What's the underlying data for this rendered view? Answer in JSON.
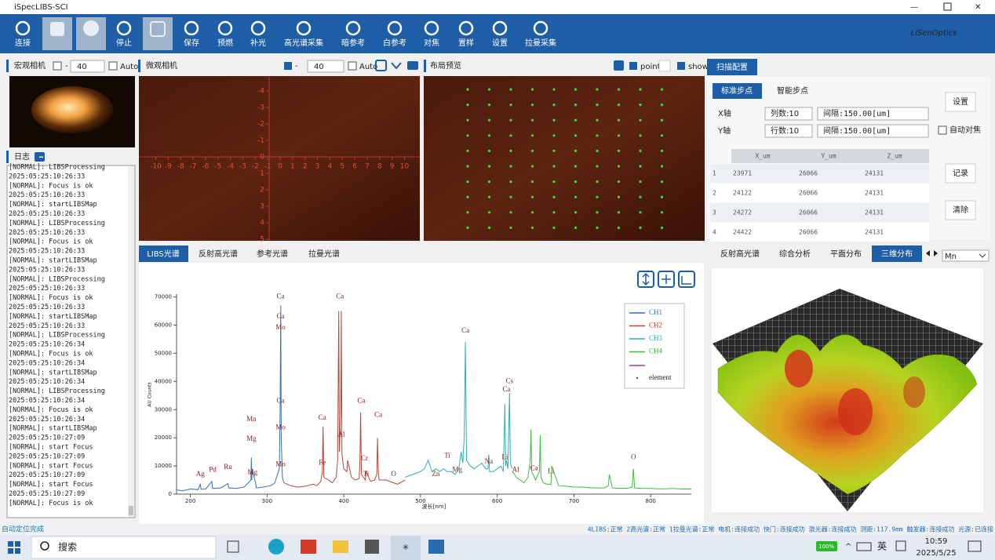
{
  "window": {
    "title": "iSpecLIBS-SCI"
  },
  "toolbar": [
    "连接",
    "停止",
    "保存",
    "预燃",
    "补光",
    "高光谱采集",
    "暗参考",
    "白参考",
    "对焦",
    "置样",
    "设置",
    "拉曼采集"
  ],
  "brand": "LiSenOptics",
  "macro_camera": {
    "title": "宏观相机",
    "exposure": "40",
    "auto": "Auto"
  },
  "micro_camera": {
    "title": "微观相机",
    "exposure": "40",
    "auto": "Auto",
    "xticks": [
      -10,
      -9,
      -8,
      -7,
      -6,
      -5,
      -4,
      -3,
      -2,
      -1,
      0,
      1,
      2,
      3,
      4,
      5,
      6,
      7,
      8,
      9,
      10
    ],
    "yticks": [
      -4,
      -3,
      -2,
      -1,
      0,
      1,
      2,
      3,
      4,
      5
    ]
  },
  "layout_preview": {
    "title": "布局预览",
    "point": "point",
    "show": "show"
  },
  "log": {
    "title": "日志",
    "lines": [
      "[NORMAL]:  LIBSProcessing",
      "2025:05:25:10:26:33",
      "[NORMAL]:  Focus is ok",
      "2025:05:25:10:26:33",
      "[NORMAL]:  startLIBSMap",
      "2025:05:25:10:26:33",
      "[NORMAL]:  LIBSProcessing",
      "2025:05:25:10:26:33",
      "[NORMAL]:  Focus is ok",
      "2025:05:25:10:26:33",
      "[NORMAL]:  startLIBSMap",
      "2025:05:25:10:26:33",
      "[NORMAL]:  LIBSProcessing",
      "2025:05:25:10:26:33",
      "[NORMAL]:  Focus is ok",
      "2025:05:25:10:26:33",
      "[NORMAL]:  startLIBSMap",
      "2025:05:25:10:26:33",
      "[NORMAL]:  LIBSProcessing",
      "2025:05:25:10:26:34",
      "[NORMAL]:  Focus is ok",
      "2025:05:25:10:26:34",
      "[NORMAL]:  startLIBSMap",
      "2025:05:25:10:26:34",
      "[NORMAL]:  LIBSProcessing",
      "2025:05:25:10:26:34",
      "[NORMAL]:  Focus is ok",
      "2025:05:25:10:26:34",
      "[NORMAL]:  startLIBSMap",
      "2025:05:25:10:27:09",
      "[NORMAL]:  start Focus",
      "2025:05:25:10:27:09",
      "[NORMAL]:  start Focus",
      "2025:05:25:10:27:09",
      "[NORMAL]:  start Focus",
      "2025:05:25:10:27:09",
      "[NORMAL]:  Focus is ok"
    ]
  },
  "scan_config": {
    "tab": "扫描配置",
    "subtabs": [
      "标准步点",
      "智能步点"
    ],
    "x_label": "X轴",
    "x_count": "列数:10",
    "x_step": "间隔:150.00[um]",
    "y_label": "Y轴",
    "y_count": "行数:10",
    "y_step": "间隔:150.00[um]",
    "set": "设置",
    "autofocus": "自动对焦",
    "record": "记录",
    "clear": "清除",
    "table": {
      "header": [
        "X_um",
        "Y_um",
        "Z_um"
      ],
      "rows": [
        [
          "1",
          "23971",
          "26066",
          "24131"
        ],
        [
          "2",
          "24122",
          "26066",
          "24131"
        ],
        [
          "3",
          "24272",
          "26066",
          "24131"
        ],
        [
          "4",
          "24422",
          "26066",
          "24131"
        ]
      ]
    }
  },
  "spectrum_tabs": [
    "LIBS光谱",
    "反射高光谱",
    "参考光谱",
    "拉曼光谱"
  ],
  "analysis_tabs": [
    "反射高光谱",
    "综合分析",
    "平面分布",
    "三维分布"
  ],
  "element_select": "Mn",
  "chart_data": {
    "type": "line",
    "xlabel": "波长[nm]",
    "ylabel": "AU Counts",
    "xlim": [
      182,
      853
    ],
    "ylim": [
      0,
      71000
    ],
    "xticks": [
      200,
      300,
      400,
      500,
      600,
      700,
      800
    ],
    "yticks": [
      0,
      10000,
      20000,
      30000,
      40000,
      50000,
      60000,
      70000
    ],
    "legend_extra": "element",
    "series": [
      {
        "name": "CH1",
        "color": "#3a6fb0",
        "x": [
          182,
          190,
          200,
          210,
          213,
          214,
          220,
          228,
          229,
          240,
          249,
          250,
          260,
          270,
          279,
          279.5,
          280,
          280.5,
          285,
          286,
          295,
          305,
          310,
          316,
          317,
          317.8,
          318.5,
          320,
          322
        ],
        "values": [
          1500,
          1200,
          1800,
          1600,
          3500,
          1700,
          1800,
          4500,
          2000,
          2200,
          3800,
          2200,
          2000,
          2500,
          5000,
          13000,
          5000,
          9000,
          4000,
          2200,
          2500,
          3000,
          4000,
          9000,
          30000,
          67000,
          20000,
          6000,
          4000
        ]
      },
      {
        "name": "CH2",
        "color": "#b5473a",
        "x": [
          322,
          330,
          340,
          350,
          360,
          365,
          370,
          372,
          373,
          374,
          380,
          385,
          390,
          392,
          393.4,
          394.2,
          395,
          396.2,
          396.8,
          397.6,
          400,
          404,
          405,
          410,
          415,
          420,
          421,
          422,
          423,
          428,
          429,
          435,
          440,
          443,
          444,
          445,
          446,
          455,
          465,
          470,
          480
        ],
        "values": [
          4000,
          3000,
          2500,
          2800,
          3500,
          3000,
          4500,
          8000,
          24000,
          6000,
          5000,
          4000,
          6000,
          12000,
          65000,
          15000,
          20000,
          30000,
          65000,
          14000,
          9000,
          8000,
          12000,
          6000,
          5000,
          5500,
          12000,
          29000,
          7000,
          5000,
          8000,
          4500,
          5000,
          7000,
          20000,
          8000,
          5000,
          5000,
          4000,
          3500,
          5000
        ]
      },
      {
        "name": "CH3",
        "color": "#2ab0b0",
        "x": [
          480,
          490,
          500,
          505,
          510,
          515,
          520,
          525,
          530,
          535,
          540,
          545,
          550,
          553,
          555,
          557,
          558.5,
          560,
          565,
          570,
          575,
          580,
          585,
          588,
          589,
          590,
          595,
          600,
          605,
          608,
          610,
          611,
          612,
          614,
          616,
          617,
          618,
          620
        ],
        "values": [
          6000,
          7000,
          8000,
          9000,
          12000,
          8000,
          9000,
          8000,
          9000,
          8000,
          8000,
          7000,
          9000,
          15000,
          11000,
          20000,
          54000,
          12000,
          10000,
          9000,
          10000,
          11000,
          9000,
          9000,
          14000,
          8000,
          8000,
          9000,
          10000,
          8000,
          32000,
          10000,
          12000,
          9000,
          36000,
          12000,
          10000,
          9000
        ]
      },
      {
        "name": "CH4",
        "color": "#3bbf3b",
        "x": [
          620,
          625,
          630,
          635,
          640,
          643,
          644,
          645,
          650,
          655,
          656,
          657,
          660,
          665,
          670,
          671,
          680,
          690,
          700,
          710,
          720,
          730,
          740,
          745,
          746,
          750,
          760,
          770,
          776,
          777.5,
          779,
          790,
          800,
          810,
          820,
          830,
          840,
          853
        ],
        "values": [
          8000,
          6000,
          5000,
          4000,
          6000,
          12000,
          23000,
          8000,
          5000,
          8000,
          21000,
          6000,
          4000,
          3500,
          3500,
          10000,
          3000,
          2800,
          2500,
          2500,
          2300,
          2200,
          2200,
          3000,
          7000,
          2200,
          2100,
          2100,
          2500,
          9000,
          2200,
          2000,
          2000,
          1900,
          1900,
          2000,
          1800,
          1800
        ]
      }
    ],
    "annotations": [
      {
        "text": "Ag",
        "x": 213,
        "y": 7000
      },
      {
        "text": "Pd",
        "x": 229,
        "y": 8500
      },
      {
        "text": "Ru",
        "x": 249,
        "y": 9500
      },
      {
        "text": "Mn",
        "x": 279.5,
        "y": 26500
      },
      {
        "text": "Mg",
        "x": 279.5,
        "y": 19500
      },
      {
        "text": "Mg",
        "x": 281,
        "y": 7500
      },
      {
        "text": "Ca",
        "x": 317.5,
        "y": 70000
      },
      {
        "text": "Ca",
        "x": 317.5,
        "y": 63000
      },
      {
        "text": "Mo",
        "x": 317.5,
        "y": 59000
      },
      {
        "text": "Ca",
        "x": 317.5,
        "y": 33000
      },
      {
        "text": "Mo",
        "x": 317.5,
        "y": 23500
      },
      {
        "text": "Mo",
        "x": 317.5,
        "y": 10500
      },
      {
        "text": "Ca",
        "x": 372,
        "y": 27000
      },
      {
        "text": "Fe",
        "x": 372,
        "y": 11000
      },
      {
        "text": "Ca",
        "x": 395,
        "y": 70000
      },
      {
        "text": "Al",
        "x": 396.8,
        "y": 21000
      },
      {
        "text": "Ca",
        "x": 422.7,
        "y": 33000
      },
      {
        "text": "Ca",
        "x": 445,
        "y": 28000
      },
      {
        "text": "Cr",
        "x": 427,
        "y": 12500
      },
      {
        "text": "Ti",
        "x": 429,
        "y": 7000
      },
      {
        "text": "O",
        "x": 465,
        "y": 7000
      },
      {
        "text": "Ti",
        "x": 535,
        "y": 13500
      },
      {
        "text": "Zn",
        "x": 520,
        "y": 7000
      },
      {
        "text": "Mg",
        "x": 548,
        "y": 8500
      },
      {
        "text": "Ca",
        "x": 558.5,
        "y": 58000
      },
      {
        "text": "Na",
        "x": 589,
        "y": 11500
      },
      {
        "text": "Li",
        "x": 610,
        "y": 13000
      },
      {
        "text": "Ca",
        "x": 612,
        "y": 37000
      },
      {
        "text": "Cs",
        "x": 616,
        "y": 40000
      },
      {
        "text": "Al",
        "x": 624,
        "y": 8500
      },
      {
        "text": "Ca",
        "x": 648,
        "y": 9000
      },
      {
        "text": "Li",
        "x": 670,
        "y": 8000
      },
      {
        "text": "O",
        "x": 777.5,
        "y": 13000
      }
    ]
  },
  "status": {
    "left": "自动定位完成",
    "right": "4LIBS:正常 2高光谱:正常 1拉曼光谱:正常 电机:连接成功 快门:连接成功 激光器:连接成功 测距:117.9mm 触发器:连接成功 光源:已连接"
  },
  "taskbar": {
    "search": "搜索",
    "battery": "100%",
    "ime": "英",
    "time": "10:59",
    "date": "2025/5/25"
  }
}
